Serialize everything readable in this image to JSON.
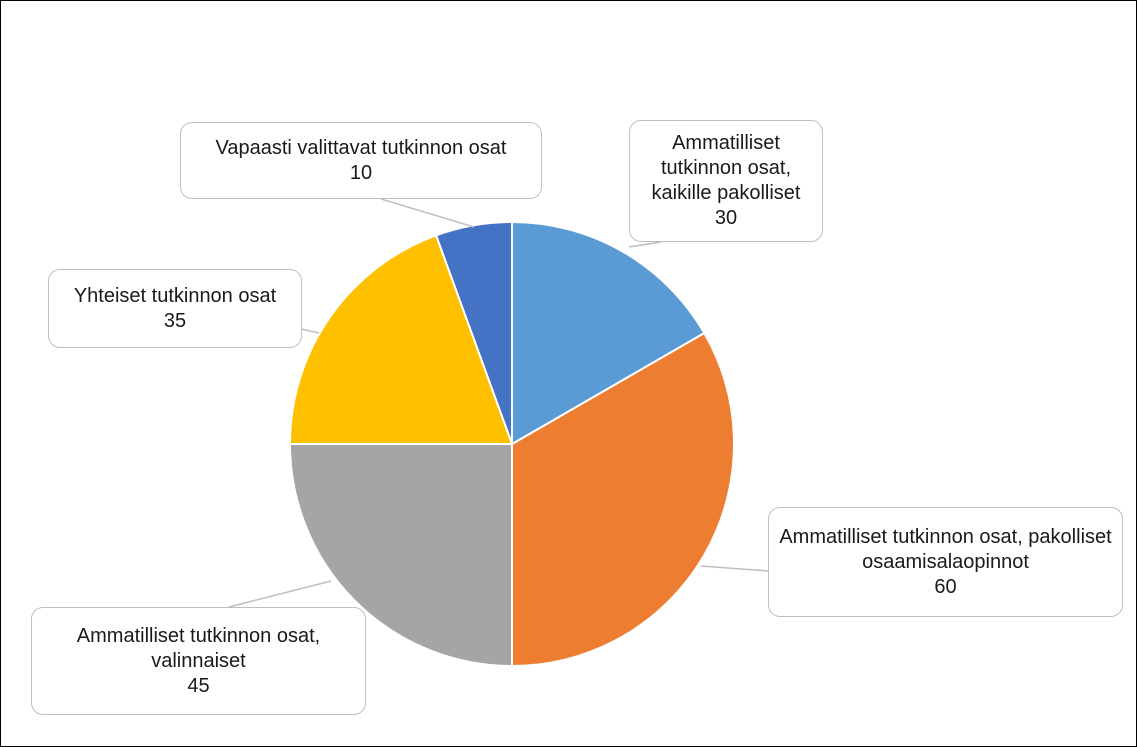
{
  "chart_data": {
    "type": "pie",
    "categories": [
      "Ammatilliset tutkinnon osat, kaikille pakolliset",
      "Ammatilliset tutkinnon osat, pakolliset osaamisalaopinnot",
      "Ammatilliset tutkinnon osat, valinnaiset",
      "Yhteiset tutkinnon osat",
      "Vapaasti valittavat tutkinnon osat"
    ],
    "values": [
      30,
      60,
      45,
      35,
      10
    ],
    "colors": [
      "#5b9bd5",
      "#ed7d31",
      "#a5a5a5",
      "#ffc000",
      "#4472c4"
    ]
  }
}
